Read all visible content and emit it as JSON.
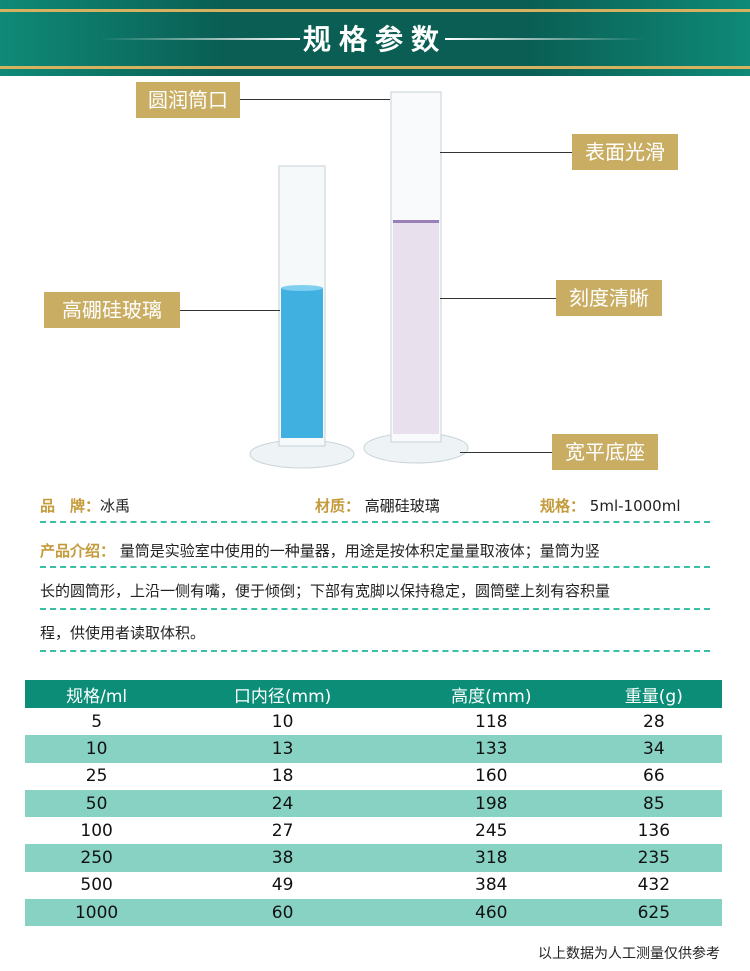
{
  "banner": {
    "title": "规格参数"
  },
  "callouts": {
    "mouth": "圆润筒口",
    "smooth": "表面光滑",
    "glass": "高硼硅玻璃",
    "scale": "刻度清晰",
    "base": "宽平底座"
  },
  "info": {
    "brand_label": "品　牌：",
    "brand": "冰禹",
    "material_label": "材质：",
    "material": "高硼硅玻璃",
    "spec_label": "规格：",
    "spec": "5ml-1000ml"
  },
  "intro": {
    "label": "产品介绍：",
    "line1": "量筒是实验室中使用的一种量器，用途是按体积定量量取液体；量筒为竖",
    "line2": "长的圆筒形，上沿一侧有嘴，便于倾倒；下部有宽脚以保持稳定，圆筒壁上刻有容积量",
    "line3": "程，供使用者读取体积。"
  },
  "table": {
    "headers": [
      "规格/ml",
      "口内径(mm)",
      "高度(mm)",
      "重量(g)"
    ],
    "rows": [
      [
        "5",
        "10",
        "118",
        "28"
      ],
      [
        "10",
        "13",
        "133",
        "34"
      ],
      [
        "25",
        "18",
        "160",
        "66"
      ],
      [
        "50",
        "24",
        "198",
        "85"
      ],
      [
        "100",
        "27",
        "245",
        "136"
      ],
      [
        "250",
        "38",
        "318",
        "235"
      ],
      [
        "500",
        "49",
        "384",
        "432"
      ],
      [
        "1000",
        "60",
        "460",
        "625"
      ]
    ]
  },
  "footer": "以上数据为人工测量仅供参考",
  "colors": {
    "banner": "#0a5e53",
    "gold": "#c8ad63",
    "table_header": "#0b8d78",
    "row_alt": "#88d2c4"
  }
}
